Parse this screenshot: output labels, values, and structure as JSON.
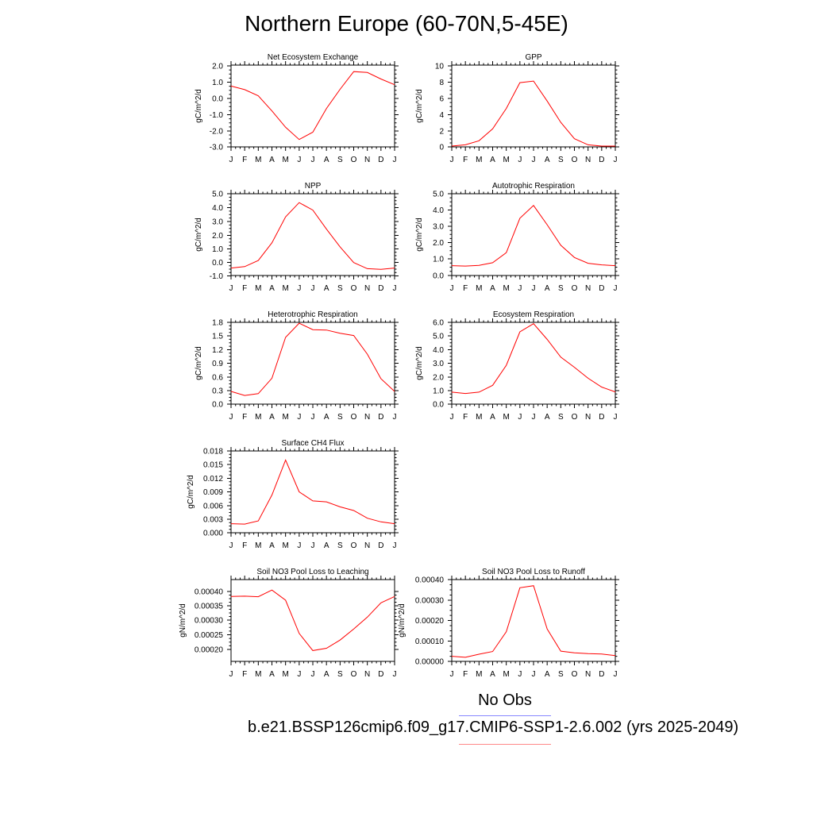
{
  "page": {
    "title": "Northern Europe (60-70N,5-45E)",
    "legend": {
      "obs_label": "No Obs",
      "obs_color": "#8888ff",
      "run_label": "b.e21.BSSP126cmip6.f09_g17.CMIP6-SSP1-2.6.002 (yrs 2025-2049)",
      "run_color": "#ff8888"
    }
  },
  "chart_data": [
    {
      "type": "line",
      "title": "Net Ecosystem Exchange",
      "ylabel": "gC/m^2/d",
      "xticks": [
        "J",
        "F",
        "M",
        "A",
        "M",
        "J",
        "J",
        "A",
        "S",
        "O",
        "N",
        "D",
        "J"
      ],
      "yticks": [
        "2.0",
        "1.0",
        "0.0",
        "-1.0",
        "-2.0",
        "-3.0"
      ],
      "ylim": [
        -3.0,
        2.0
      ],
      "series": [
        {
          "color": "#ff0000",
          "values": [
            0.72,
            0.5,
            0.12,
            -0.8,
            -1.8,
            -2.55,
            -2.1,
            -0.65,
            0.52,
            1.6,
            1.55,
            1.15,
            0.8
          ]
        }
      ]
    },
    {
      "type": "line",
      "title": "GPP",
      "ylabel": "gC/m^2/d",
      "xticks": [
        "J",
        "F",
        "M",
        "A",
        "M",
        "J",
        "J",
        "A",
        "S",
        "O",
        "N",
        "D",
        "J"
      ],
      "yticks": [
        "10",
        "8",
        "6",
        "4",
        "2",
        "0"
      ],
      "ylim": [
        0,
        10
      ],
      "series": [
        {
          "color": "#ff0000",
          "values": [
            0.1,
            0.25,
            0.75,
            2.2,
            4.7,
            7.85,
            8.05,
            5.6,
            3.0,
            1.0,
            0.25,
            0.1,
            0.1
          ]
        }
      ]
    },
    {
      "type": "line",
      "title": "NPP",
      "ylabel": "gC/m^2/d",
      "xticks": [
        "J",
        "F",
        "M",
        "A",
        "M",
        "J",
        "J",
        "A",
        "S",
        "O",
        "N",
        "D",
        "J"
      ],
      "yticks": [
        "5.0",
        "4.0",
        "3.0",
        "2.0",
        "1.0",
        "0.0",
        "-1.0"
      ],
      "ylim": [
        -1.0,
        5.0
      ],
      "series": [
        {
          "color": "#ff0000",
          "values": [
            -0.45,
            -0.35,
            0.1,
            1.4,
            3.3,
            4.35,
            3.8,
            2.4,
            1.1,
            -0.05,
            -0.5,
            -0.55,
            -0.45
          ]
        }
      ]
    },
    {
      "type": "line",
      "title": "Autotrophic Respiration",
      "ylabel": "gC/m^2/d",
      "xticks": [
        "J",
        "F",
        "M",
        "A",
        "M",
        "J",
        "J",
        "A",
        "S",
        "O",
        "N",
        "D",
        "J"
      ],
      "yticks": [
        "5.0",
        "4.0",
        "3.0",
        "2.0",
        "1.0",
        "0.0"
      ],
      "ylim": [
        0.0,
        5.0
      ],
      "series": [
        {
          "color": "#ff0000",
          "values": [
            0.6,
            0.58,
            0.62,
            0.78,
            1.4,
            3.5,
            4.28,
            3.1,
            1.85,
            1.1,
            0.75,
            0.65,
            0.6
          ]
        }
      ]
    },
    {
      "type": "line",
      "title": "Heterotrophic Respiration",
      "ylabel": "gC/m^2/d",
      "xticks": [
        "J",
        "F",
        "M",
        "A",
        "M",
        "J",
        "J",
        "A",
        "S",
        "O",
        "N",
        "D",
        "J"
      ],
      "yticks": [
        "1.8",
        "1.5",
        "1.2",
        "0.9",
        "0.6",
        "0.3",
        "0.0"
      ],
      "ylim": [
        0.0,
        1.8
      ],
      "series": [
        {
          "color": "#ff0000",
          "values": [
            0.28,
            0.19,
            0.23,
            0.57,
            1.47,
            1.78,
            1.64,
            1.63,
            1.56,
            1.51,
            1.1,
            0.56,
            0.28
          ]
        }
      ]
    },
    {
      "type": "line",
      "title": "Ecosystem Respiration",
      "ylabel": "gC/m^2/d",
      "xticks": [
        "J",
        "F",
        "M",
        "A",
        "M",
        "J",
        "J",
        "A",
        "S",
        "O",
        "N",
        "D",
        "J"
      ],
      "yticks": [
        "6.0",
        "5.0",
        "4.0",
        "3.0",
        "2.0",
        "1.0",
        "0.0"
      ],
      "ylim": [
        0.0,
        6.0
      ],
      "series": [
        {
          "color": "#ff0000",
          "values": [
            0.88,
            0.78,
            0.88,
            1.38,
            2.85,
            5.3,
            5.9,
            4.75,
            3.45,
            2.7,
            1.9,
            1.25,
            0.9
          ]
        }
      ]
    },
    {
      "type": "line",
      "title": "Surface CH4 Flux",
      "ylabel": "gC/m^2/d",
      "xticks": [
        "J",
        "F",
        "M",
        "A",
        "M",
        "J",
        "J",
        "A",
        "S",
        "O",
        "N",
        "D",
        "J"
      ],
      "yticks": [
        "0.018",
        "0.015",
        "0.012",
        "0.009",
        "0.006",
        "0.003",
        "0.000"
      ],
      "ylim": [
        0.0,
        0.018
      ],
      "series": [
        {
          "color": "#ff0000",
          "values": [
            0.002,
            0.0019,
            0.0026,
            0.0083,
            0.016,
            0.009,
            0.007,
            0.0068,
            0.0057,
            0.0049,
            0.0032,
            0.0024,
            0.002
          ]
        }
      ]
    },
    {
      "type": "line",
      "title": "Soil NO3 Pool Loss to Leaching",
      "ylabel": "gN/m^2/d",
      "xticks": [
        "J",
        "F",
        "M",
        "A",
        "M",
        "J",
        "J",
        "A",
        "S",
        "O",
        "N",
        "D",
        "J"
      ],
      "yticks": [
        "0.00040",
        "0.00035",
        "0.00030",
        "0.00025",
        "0.00020"
      ],
      "ylim": [
        0.000163,
        0.000444
      ],
      "series": [
        {
          "color": "#ff0000",
          "values": [
            0.000386,
            0.000387,
            0.000385,
            0.000408,
            0.000373,
            0.000259,
            0.0002,
            0.000208,
            0.000236,
            0.000274,
            0.000315,
            0.000364,
            0.000386
          ]
        }
      ]
    },
    {
      "type": "line",
      "title": "Soil NO3 Pool Loss to Runoff",
      "ylabel": "gN/m^2/d",
      "xticks": [
        "J",
        "F",
        "M",
        "A",
        "M",
        "J",
        "J",
        "A",
        "S",
        "O",
        "N",
        "D",
        "J"
      ],
      "yticks": [
        "0.00040",
        "0.00030",
        "0.00020",
        "0.00010",
        "0.00000"
      ],
      "ylim": [
        0.0,
        0.0004
      ],
      "series": [
        {
          "color": "#ff0000",
          "values": [
            2.5e-05,
            2e-05,
            3.5e-05,
            4.8e-05,
            0.000145,
            0.00036,
            0.00037,
            0.000158,
            5e-05,
            4.2e-05,
            3.8e-05,
            3.6e-05,
            2.8e-05
          ]
        }
      ]
    }
  ]
}
